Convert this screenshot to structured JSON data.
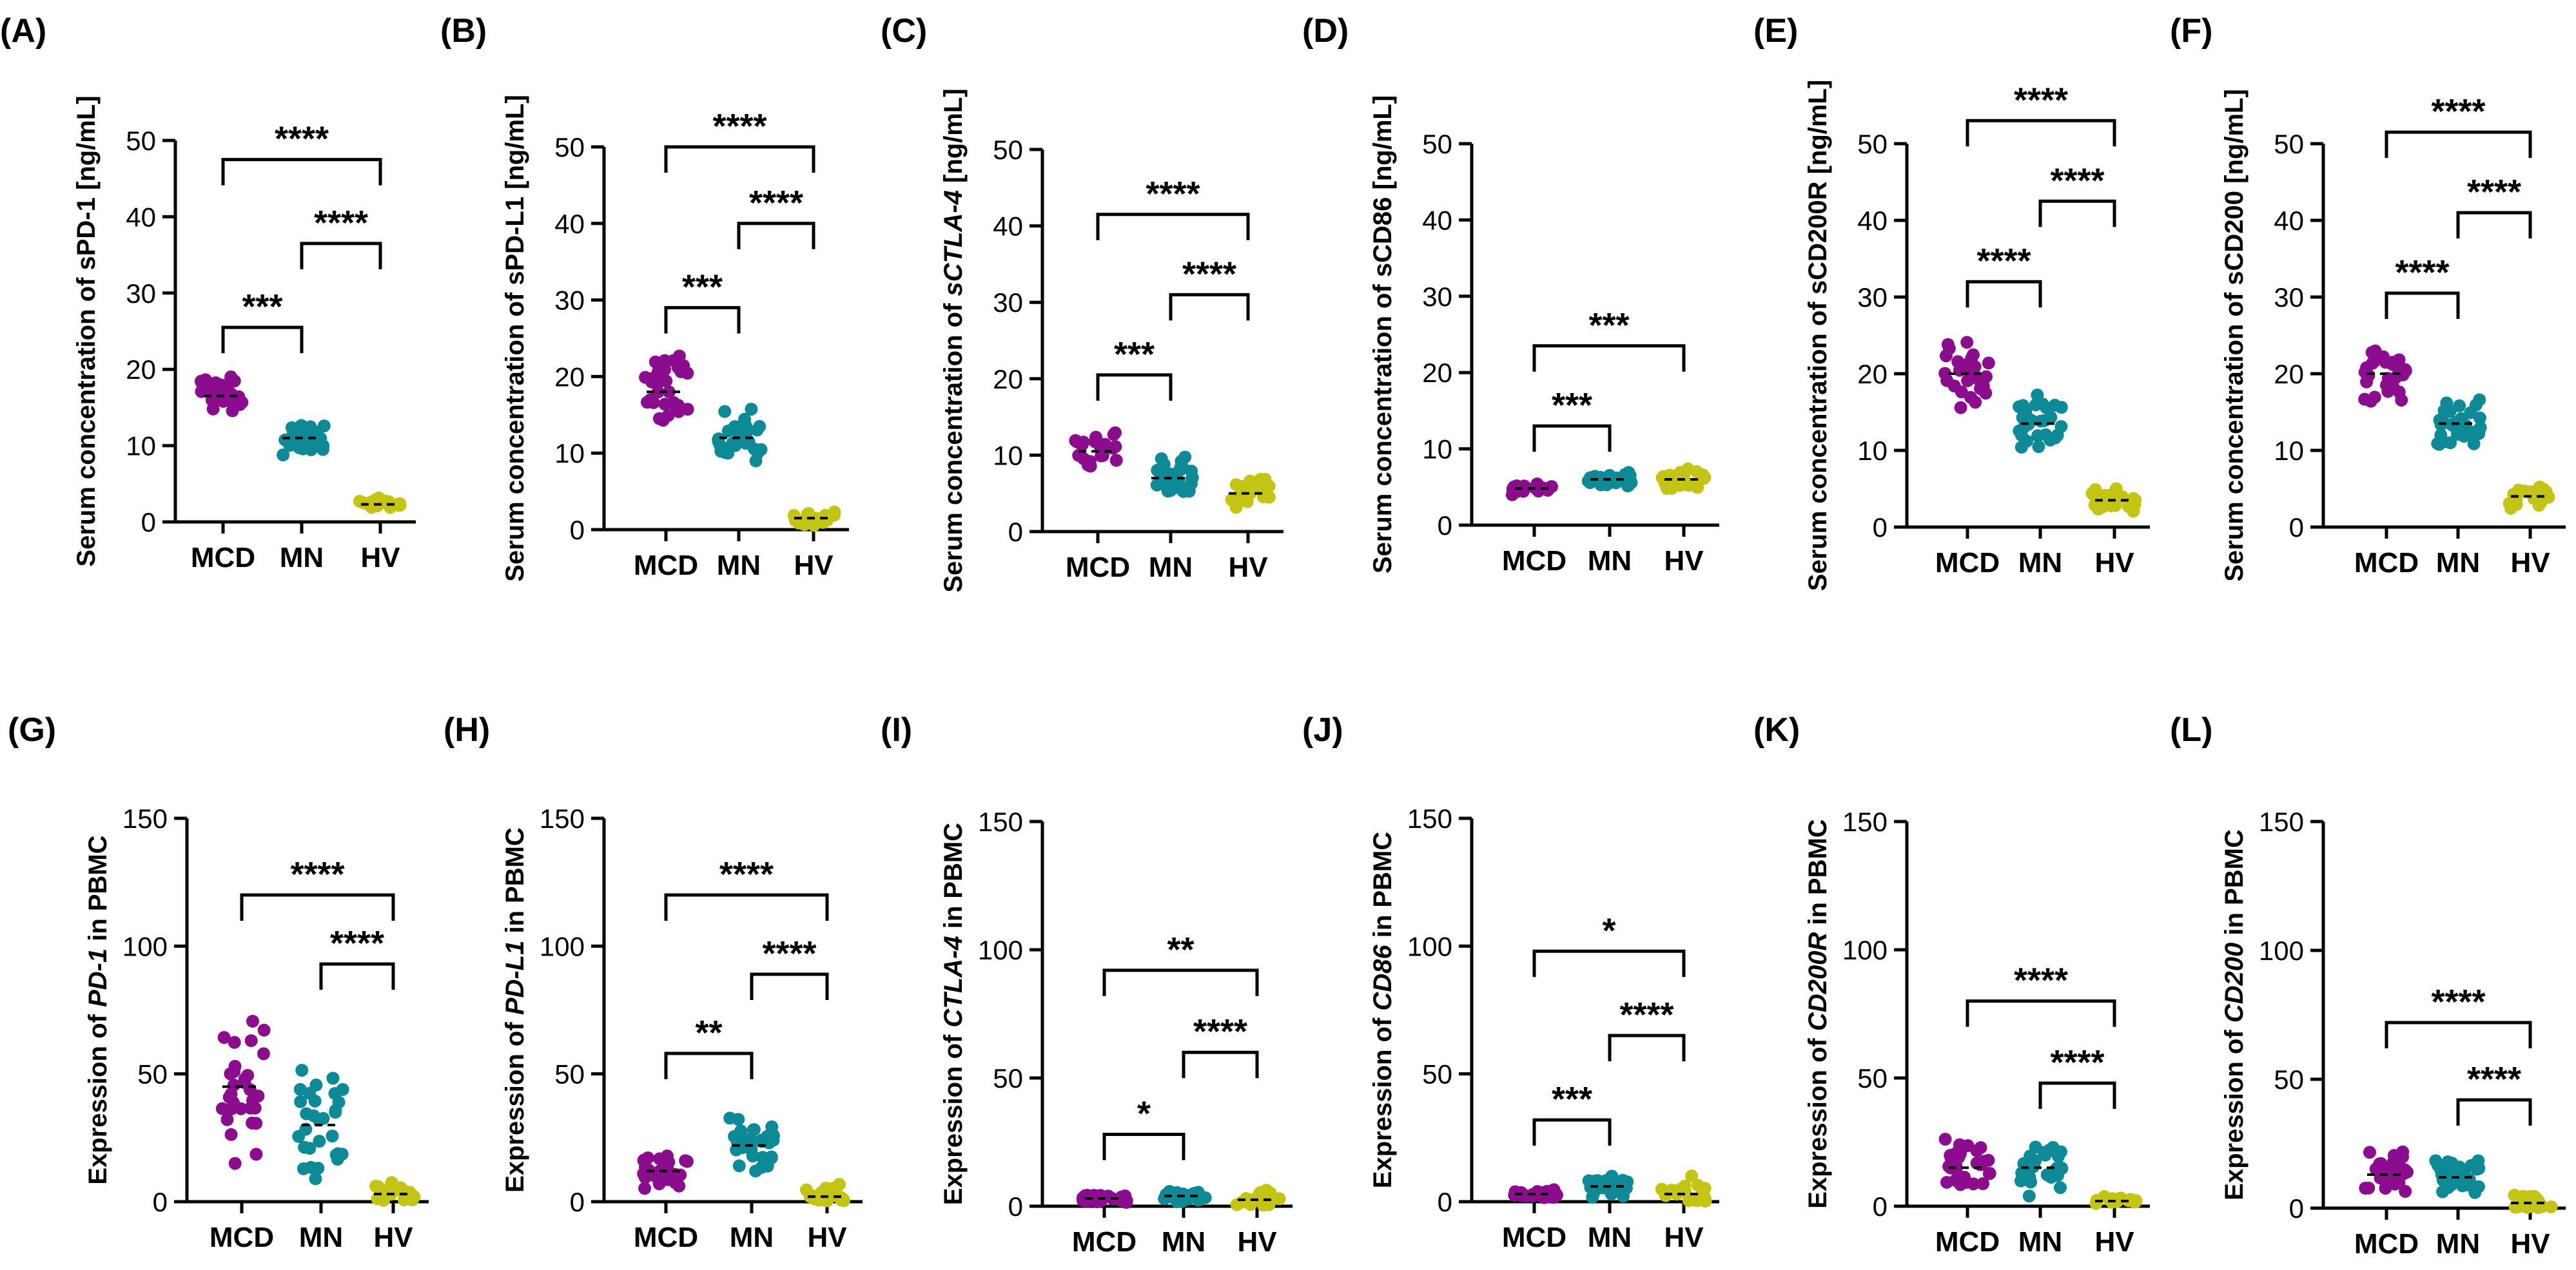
{
  "colors": {
    "MCD": "#8b0d8e",
    "MN": "#0e8a96",
    "HV": "#c4c414"
  },
  "chart_data": [
    {
      "panel": "(A)",
      "type": "scatter",
      "ylabel": "Serum concentration of sPD-1 [ng/mL]",
      "ylabel_parts": [
        {
          "text": "Serum concentration of sPD-1 [ng/mL]",
          "italic": false
        }
      ],
      "ylim": [
        0,
        50
      ],
      "yticks": [
        0,
        10,
        20,
        30,
        40,
        50
      ],
      "categories": [
        "MCD",
        "MN",
        "HV"
      ],
      "series": [
        {
          "name": "MCD",
          "center": 16.5,
          "spread": 3.2,
          "n": 30
        },
        {
          "name": "MN",
          "center": 11,
          "spread": 2.8,
          "n": 30
        },
        {
          "name": "HV",
          "center": 2.3,
          "spread": 1.0,
          "n": 20
        }
      ],
      "comparisons": [
        {
          "from": 0,
          "to": 1,
          "label": "***",
          "y": 25.5
        },
        {
          "from": 1,
          "to": 2,
          "label": "****",
          "y": 36.5
        },
        {
          "from": 0,
          "to": 2,
          "label": "****",
          "y": 47.5
        }
      ]
    },
    {
      "panel": "(B)",
      "type": "scatter",
      "ylabel": "Serum concentration of sPD-L1 [ng/mL]",
      "ylabel_parts": [
        {
          "text": "Serum concentration of sPD-L1 [ng/mL]",
          "italic": false
        }
      ],
      "ylim": [
        0,
        50
      ],
      "yticks": [
        0,
        10,
        20,
        30,
        40,
        50
      ],
      "categories": [
        "MCD",
        "MN",
        "HV"
      ],
      "series": [
        {
          "name": "MCD",
          "center": 18,
          "spread": 5.5,
          "n": 30
        },
        {
          "name": "MN",
          "center": 12,
          "spread": 4.5,
          "n": 30
        },
        {
          "name": "HV",
          "center": 1.5,
          "spread": 1.0,
          "n": 20
        }
      ],
      "comparisons": [
        {
          "from": 0,
          "to": 1,
          "label": "***",
          "y": 29
        },
        {
          "from": 1,
          "to": 2,
          "label": "****",
          "y": 40
        },
        {
          "from": 0,
          "to": 2,
          "label": "****",
          "y": 50
        }
      ]
    },
    {
      "panel": "(C)",
      "type": "scatter",
      "ylabel": "Serum concentration of sCTLA-4 [ng/mL]",
      "ylabel_parts": [
        {
          "text": "Serum concentration of ",
          "italic": false
        },
        {
          "text": "sCTLA-4",
          "italic": true
        },
        {
          "text": " [ng/mL]",
          "italic": false
        }
      ],
      "ylim": [
        0,
        50
      ],
      "yticks": [
        0,
        10,
        20,
        30,
        40,
        50
      ],
      "categories": [
        "MCD",
        "MN",
        "HV"
      ],
      "series": [
        {
          "name": "MCD",
          "center": 10.5,
          "spread": 3.5,
          "n": 25
        },
        {
          "name": "MN",
          "center": 7,
          "spread": 3.0,
          "n": 30
        },
        {
          "name": "HV",
          "center": 5,
          "spread": 2.5,
          "n": 20
        }
      ],
      "comparisons": [
        {
          "from": 0,
          "to": 1,
          "label": "***",
          "y": 20.5
        },
        {
          "from": 1,
          "to": 2,
          "label": "****",
          "y": 31
        },
        {
          "from": 0,
          "to": 2,
          "label": "****",
          "y": 41.5
        }
      ]
    },
    {
      "panel": "(D)",
      "type": "scatter",
      "ylabel": "Serum concentration of sCD86 [ng/mL]",
      "ylabel_parts": [
        {
          "text": "Serum concentration of sCD86 [ng/mL]",
          "italic": false
        }
      ],
      "ylim": [
        0,
        50
      ],
      "yticks": [
        0,
        10,
        20,
        30,
        40,
        50
      ],
      "categories": [
        "MCD",
        "MN",
        "HV"
      ],
      "series": [
        {
          "name": "MCD",
          "center": 4.8,
          "spread": 1.0,
          "n": 25
        },
        {
          "name": "MN",
          "center": 6,
          "spread": 1.2,
          "n": 25
        },
        {
          "name": "HV",
          "center": 6,
          "spread": 1.5,
          "n": 25
        }
      ],
      "comparisons": [
        {
          "from": 0,
          "to": 1,
          "label": "***",
          "y": 13
        },
        {
          "from": 0,
          "to": 2,
          "label": "***",
          "y": 23.5
        }
      ]
    },
    {
      "panel": "(E)",
      "type": "scatter",
      "ylabel": "Serum concentration of sCD200R [ng/mL]",
      "ylabel_parts": [
        {
          "text": "Serum concentration of sCD200R [ng/mL]",
          "italic": false
        }
      ],
      "ylim": [
        0,
        50
      ],
      "yticks": [
        0,
        10,
        20,
        30,
        40,
        50
      ],
      "categories": [
        "MCD",
        "MN",
        "HV"
      ],
      "series": [
        {
          "name": "MCD",
          "center": 20,
          "spread": 5.5,
          "n": 30
        },
        {
          "name": "MN",
          "center": 13.5,
          "spread": 4.5,
          "n": 30
        },
        {
          "name": "HV",
          "center": 3.5,
          "spread": 2.0,
          "n": 20
        }
      ],
      "comparisons": [
        {
          "from": 0,
          "to": 1,
          "label": "****",
          "y": 32
        },
        {
          "from": 1,
          "to": 2,
          "label": "****",
          "y": 42.5
        },
        {
          "from": 0,
          "to": 2,
          "label": "****",
          "y": 53
        }
      ]
    },
    {
      "panel": "(F)",
      "type": "scatter",
      "ylabel": "Serum concentration of sCD200 [ng/mL]",
      "ylabel_parts": [
        {
          "text": "Serum concentration of sCD200 [ng/mL]",
          "italic": false
        }
      ],
      "ylim": [
        0,
        50
      ],
      "yticks": [
        0,
        10,
        20,
        30,
        40,
        50
      ],
      "categories": [
        "MCD",
        "MN",
        "HV"
      ],
      "series": [
        {
          "name": "MCD",
          "center": 20,
          "spread": 4.5,
          "n": 30
        },
        {
          "name": "MN",
          "center": 13.5,
          "spread": 4.0,
          "n": 30
        },
        {
          "name": "HV",
          "center": 4,
          "spread": 2.0,
          "n": 20
        }
      ],
      "comparisons": [
        {
          "from": 0,
          "to": 1,
          "label": "****",
          "y": 30.5
        },
        {
          "from": 1,
          "to": 2,
          "label": "****",
          "y": 41
        },
        {
          "from": 0,
          "to": 2,
          "label": "****",
          "y": 51.5
        }
      ]
    },
    {
      "panel": "(G)",
      "type": "scatter",
      "ylabel": "Expression of PD-1 in PBMC",
      "ylabel_parts": [
        {
          "text": "Expression of ",
          "italic": false
        },
        {
          "text": "PD-1",
          "italic": true
        },
        {
          "text": " in PBMC",
          "italic": false
        }
      ],
      "ylim": [
        0,
        150
      ],
      "yticks": [
        0,
        50,
        100,
        150
      ],
      "categories": [
        "MCD",
        "MN",
        "HV"
      ],
      "series": [
        {
          "name": "MCD",
          "center": 45,
          "spread": 36,
          "n": 30
        },
        {
          "name": "MN",
          "center": 30,
          "spread": 30,
          "n": 30
        },
        {
          "name": "HV",
          "center": 3,
          "spread": 6,
          "n": 20
        }
      ],
      "comparisons": [
        {
          "from": 1,
          "to": 2,
          "label": "****",
          "y": 93
        },
        {
          "from": 0,
          "to": 2,
          "label": "****",
          "y": 120
        }
      ]
    },
    {
      "panel": "(H)",
      "type": "scatter",
      "ylabel": "Expression of PD-L1 in PBMC",
      "ylabel_parts": [
        {
          "text": "Expression of ",
          "italic": false
        },
        {
          "text": "PD-L1",
          "italic": true
        },
        {
          "text": " in PBMC",
          "italic": false
        }
      ],
      "ylim": [
        0,
        150
      ],
      "yticks": [
        0,
        50,
        100,
        150
      ],
      "categories": [
        "MCD",
        "MN",
        "HV"
      ],
      "series": [
        {
          "name": "MCD",
          "center": 12,
          "spread": 8,
          "n": 30
        },
        {
          "name": "MN",
          "center": 22,
          "spread": 14,
          "n": 30
        },
        {
          "name": "HV",
          "center": 2,
          "spread": 6,
          "n": 20
        }
      ],
      "comparisons": [
        {
          "from": 0,
          "to": 1,
          "label": "**",
          "y": 58
        },
        {
          "from": 1,
          "to": 2,
          "label": "****",
          "y": 89
        },
        {
          "from": 0,
          "to": 2,
          "label": "****",
          "y": 120
        }
      ]
    },
    {
      "panel": "(I)",
      "type": "scatter",
      "ylabel": "Expression of CTLA-4 in PBMC",
      "ylabel_parts": [
        {
          "text": "Expression of ",
          "italic": false
        },
        {
          "text": "CTLA-4",
          "italic": true
        },
        {
          "text": " in PBMC",
          "italic": false
        }
      ],
      "ylim": [
        0,
        150
      ],
      "yticks": [
        0,
        50,
        100,
        150
      ],
      "categories": [
        "MCD",
        "MN",
        "HV"
      ],
      "series": [
        {
          "name": "MCD",
          "center": 3,
          "spread": 2,
          "n": 25
        },
        {
          "name": "MN",
          "center": 4,
          "spread": 3,
          "n": 25
        },
        {
          "name": "HV",
          "center": 2.5,
          "spread": 5,
          "n": 20
        }
      ],
      "comparisons": [
        {
          "from": 0,
          "to": 1,
          "label": "*",
          "y": 28
        },
        {
          "from": 1,
          "to": 2,
          "label": "****",
          "y": 60
        },
        {
          "from": 0,
          "to": 2,
          "label": "**",
          "y": 92
        }
      ]
    },
    {
      "panel": "(J)",
      "type": "scatter",
      "ylabel": "Expression of CD86 in PBMC",
      "ylabel_parts": [
        {
          "text": "Expression of ",
          "italic": false
        },
        {
          "text": "CD86",
          "italic": true
        },
        {
          "text": " in PBMC",
          "italic": false
        }
      ],
      "ylim": [
        0,
        150
      ],
      "yticks": [
        0,
        50,
        100,
        150
      ],
      "categories": [
        "MCD",
        "MN",
        "HV"
      ],
      "series": [
        {
          "name": "MCD",
          "center": 3,
          "spread": 2,
          "n": 25
        },
        {
          "name": "MN",
          "center": 6,
          "spread": 5,
          "n": 25
        },
        {
          "name": "HV",
          "center": 3,
          "spread": 8,
          "n": 20
        }
      ],
      "comparisons": [
        {
          "from": 0,
          "to": 1,
          "label": "***",
          "y": 32
        },
        {
          "from": 1,
          "to": 2,
          "label": "****",
          "y": 65
        },
        {
          "from": 0,
          "to": 2,
          "label": "*",
          "y": 98
        }
      ]
    },
    {
      "panel": "(K)",
      "type": "scatter",
      "ylabel": "Expression of CD200R in PBMC",
      "ylabel_parts": [
        {
          "text": "Expression of ",
          "italic": false
        },
        {
          "text": "CD200R",
          "italic": true
        },
        {
          "text": " in PBMC",
          "italic": false
        }
      ],
      "ylim": [
        0,
        150
      ],
      "yticks": [
        0,
        50,
        100,
        150
      ],
      "categories": [
        "MCD",
        "MN",
        "HV"
      ],
      "series": [
        {
          "name": "MCD",
          "center": 15,
          "spread": 12,
          "n": 30
        },
        {
          "name": "MN",
          "center": 15,
          "spread": 12,
          "n": 30
        },
        {
          "name": "HV",
          "center": 2,
          "spread": 2,
          "n": 20
        }
      ],
      "comparisons": [
        {
          "from": 1,
          "to": 2,
          "label": "****",
          "y": 48
        },
        {
          "from": 0,
          "to": 2,
          "label": "****",
          "y": 80
        }
      ]
    },
    {
      "panel": "(L)",
      "type": "scatter",
      "ylabel": "Expression of CD200 in PBMC",
      "ylabel_parts": [
        {
          "text": "Expression of ",
          "italic": false
        },
        {
          "text": "CD200",
          "italic": true
        },
        {
          "text": " in PBMC",
          "italic": false
        }
      ],
      "ylim": [
        0,
        150
      ],
      "yticks": [
        0,
        50,
        100,
        150
      ],
      "categories": [
        "MCD",
        "MN",
        "HV"
      ],
      "series": [
        {
          "name": "MCD",
          "center": 13,
          "spread": 10,
          "n": 30
        },
        {
          "name": "MN",
          "center": 12,
          "spread": 8,
          "n": 30
        },
        {
          "name": "HV",
          "center": 2,
          "spread": 4,
          "n": 20
        }
      ],
      "comparisons": [
        {
          "from": 1,
          "to": 2,
          "label": "****",
          "y": 42
        },
        {
          "from": 0,
          "to": 2,
          "label": "****",
          "y": 72
        }
      ]
    }
  ]
}
